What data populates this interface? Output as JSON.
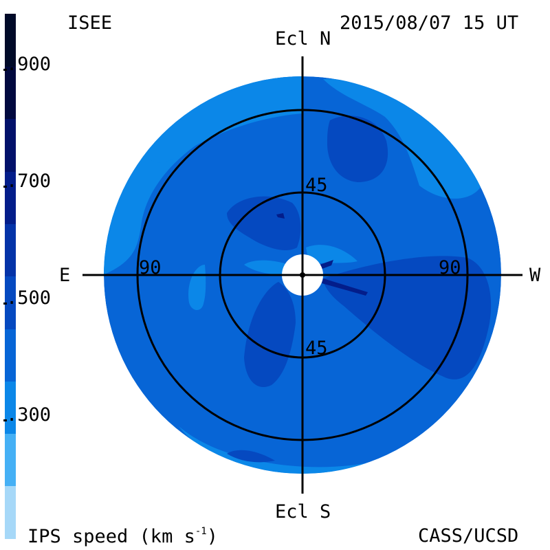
{
  "header": {
    "institution": "ISEE",
    "timestamp": "2015/08/07 15 UT"
  },
  "footer": {
    "colorbar_label": "IPS speed (km s",
    "colorbar_label_sup": "-1",
    "colorbar_label_end": ")",
    "credit": "CASS/UCSD"
  },
  "directions": {
    "north": "Ecl N",
    "south": "Ecl S",
    "east": "E",
    "west": "W"
  },
  "elongation_labels": {
    "inner_north": "45",
    "inner_south": "45",
    "outer_east": "90",
    "outer_west": "90"
  },
  "colorbar": {
    "tick_labels": [
      ".900",
      ".700",
      ".500",
      ".300"
    ],
    "colors": [
      "#a6d8f8",
      "#45b0f5",
      "#0b87e8",
      "#0765d6",
      "#0549c0",
      "#0433a8",
      "#031d8a",
      "#02116a",
      "#01093f",
      "#000a28"
    ],
    "colors_note_order": "bottom-to-top"
  },
  "map_colors": {
    "background": "#0765d6",
    "light": "#0b87e8",
    "dark": "#0549c0",
    "darker": "#031d8a",
    "occulter": "#ffffff"
  }
}
